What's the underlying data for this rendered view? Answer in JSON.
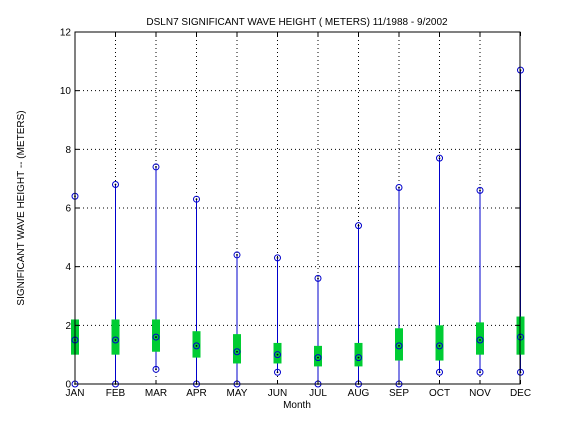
{
  "chart_data": {
    "type": "box",
    "title": "DSLN7  SIGNIFICANT WAVE HEIGHT ( METERS) 11/1988 - 9/2002",
    "xlabel": "Month",
    "ylabel": "SIGNIFICANT WAVE HEIGHT -- (METERS)",
    "ylim": [
      0,
      12
    ],
    "yticks": [
      0,
      2,
      4,
      6,
      8,
      10,
      12
    ],
    "grid": true,
    "categories": [
      "JAN",
      "FEB",
      "MAR",
      "APR",
      "MAY",
      "JUN",
      "JUL",
      "AUG",
      "SEP",
      "OCT",
      "NOV",
      "DEC"
    ],
    "series": [
      {
        "min": 0.0,
        "q1": 1.0,
        "median": 1.5,
        "q3": 2.2,
        "max": 6.4
      },
      {
        "min": 0.0,
        "q1": 1.0,
        "median": 1.5,
        "q3": 2.2,
        "max": 6.8
      },
      {
        "min": 0.5,
        "q1": 1.1,
        "median": 1.6,
        "q3": 2.2,
        "max": 7.4
      },
      {
        "min": 0.0,
        "q1": 0.9,
        "median": 1.3,
        "q3": 1.8,
        "max": 6.3
      },
      {
        "min": 0.0,
        "q1": 0.7,
        "median": 1.1,
        "q3": 1.7,
        "max": 4.4
      },
      {
        "min": 0.4,
        "q1": 0.7,
        "median": 1.0,
        "q3": 1.4,
        "max": 4.3
      },
      {
        "min": 0.0,
        "q1": 0.6,
        "median": 0.9,
        "q3": 1.3,
        "max": 3.6
      },
      {
        "min": 0.0,
        "q1": 0.6,
        "median": 0.9,
        "q3": 1.4,
        "max": 5.4
      },
      {
        "min": 0.0,
        "q1": 0.8,
        "median": 1.3,
        "q3": 1.9,
        "max": 6.7
      },
      {
        "min": 0.4,
        "q1": 0.8,
        "median": 1.3,
        "q3": 2.0,
        "max": 7.7
      },
      {
        "min": 0.4,
        "q1": 1.0,
        "median": 1.5,
        "q3": 2.1,
        "max": 6.6
      },
      {
        "min": 0.4,
        "q1": 1.0,
        "median": 1.6,
        "q3": 2.3,
        "max": 10.7
      }
    ],
    "colors": {
      "whisker": "#0000cc",
      "box": "#00cc33",
      "marker": "#0000cc",
      "grid": "#000000"
    }
  }
}
